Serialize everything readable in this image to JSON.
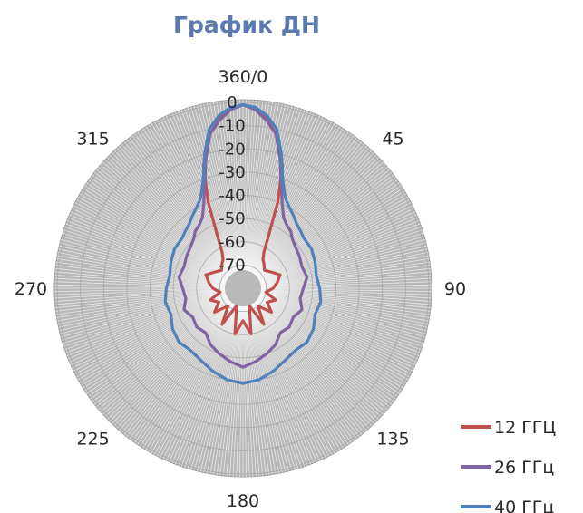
{
  "chart_data": {
    "type": "radar",
    "title": "График ДН",
    "angle_ticks": [
      {
        "angle": 0,
        "label": "360/0"
      },
      {
        "angle": 45,
        "label": "45"
      },
      {
        "angle": 90,
        "label": "90"
      },
      {
        "angle": 135,
        "label": "135"
      },
      {
        "angle": 180,
        "label": "180"
      },
      {
        "angle": 225,
        "label": "225"
      },
      {
        "angle": 270,
        "label": "270"
      },
      {
        "angle": 315,
        "label": "315"
      }
    ],
    "radial_ticks": [
      0,
      -10,
      -20,
      -30,
      -40,
      -50,
      -60,
      -70
    ],
    "rlim": [
      -80,
      0
    ],
    "grid": true,
    "legend_position": "bottom-right",
    "series": [
      {
        "name": "12 ГГЦ",
        "color": "#c0504d",
        "angles": [
          0,
          3,
          6,
          9,
          12,
          15,
          18,
          22,
          26,
          30,
          35,
          40,
          50,
          60,
          70,
          80,
          90,
          100,
          110,
          120,
          130,
          140,
          150,
          160,
          170,
          180,
          190,
          200,
          210,
          220,
          230,
          240,
          250,
          260,
          270,
          280,
          290,
          300,
          310,
          320,
          325,
          330,
          334,
          338,
          342,
          345,
          348,
          351,
          354,
          357
        ],
        "values": [
          -1,
          -2,
          -4,
          -8,
          -12,
          -18,
          -25,
          -40,
          -55,
          -62,
          -65,
          -66,
          -68,
          -66,
          -63,
          -65,
          -67,
          -70,
          -65,
          -68,
          -64,
          -70,
          -62,
          -72,
          -60,
          -66,
          -60,
          -72,
          -62,
          -70,
          -64,
          -68,
          -65,
          -70,
          -67,
          -65,
          -63,
          -66,
          -68,
          -66,
          -65,
          -62,
          -55,
          -40,
          -25,
          -18,
          -12,
          -8,
          -4,
          -2
        ]
      },
      {
        "name": "26 ГГц",
        "color": "#8064a2",
        "angles": [
          0,
          4,
          8,
          12,
          16,
          20,
          25,
          30,
          35,
          40,
          45,
          50,
          60,
          70,
          80,
          90,
          100,
          110,
          120,
          130,
          140,
          150,
          160,
          170,
          180,
          190,
          200,
          210,
          220,
          230,
          240,
          250,
          260,
          270,
          280,
          290,
          300,
          310,
          315,
          320,
          325,
          330,
          335,
          340,
          344,
          348,
          352,
          356
        ],
        "values": [
          -1,
          -3,
          -7,
          -12,
          -22,
          -32,
          -40,
          -45,
          -47,
          -48,
          -50,
          -51,
          -52,
          -53,
          -52,
          -54,
          -55,
          -53,
          -55,
          -54,
          -55,
          -52,
          -50,
          -48,
          -46,
          -48,
          -50,
          -52,
          -55,
          -54,
          -55,
          -53,
          -55,
          -54,
          -52,
          -53,
          -52,
          -51,
          -50,
          -48,
          -47,
          -45,
          -40,
          -32,
          -22,
          -12,
          -7,
          -3
        ]
      },
      {
        "name": "40 ГГц",
        "color": "#4f81bd",
        "angles": [
          0,
          4,
          8,
          12,
          16,
          20,
          25,
          30,
          35,
          40,
          45,
          50,
          60,
          70,
          80,
          90,
          100,
          110,
          120,
          130,
          140,
          150,
          160,
          170,
          180,
          190,
          200,
          210,
          220,
          230,
          240,
          250,
          260,
          270,
          280,
          290,
          300,
          310,
          315,
          320,
          325,
          330,
          335,
          340,
          344,
          348,
          352,
          356
        ],
        "values": [
          -1,
          -2,
          -5,
          -10,
          -20,
          -30,
          -37,
          -40,
          -42,
          -44,
          -45,
          -46,
          -46,
          -47,
          -48,
          -47,
          -46,
          -47,
          -45,
          -44,
          -45,
          -44,
          -42,
          -40,
          -39,
          -40,
          -42,
          -44,
          -45,
          -44,
          -45,
          -47,
          -46,
          -47,
          -48,
          -47,
          -46,
          -46,
          -45,
          -44,
          -42,
          -40,
          -37,
          -30,
          -20,
          -10,
          -5,
          -2
        ]
      }
    ]
  }
}
